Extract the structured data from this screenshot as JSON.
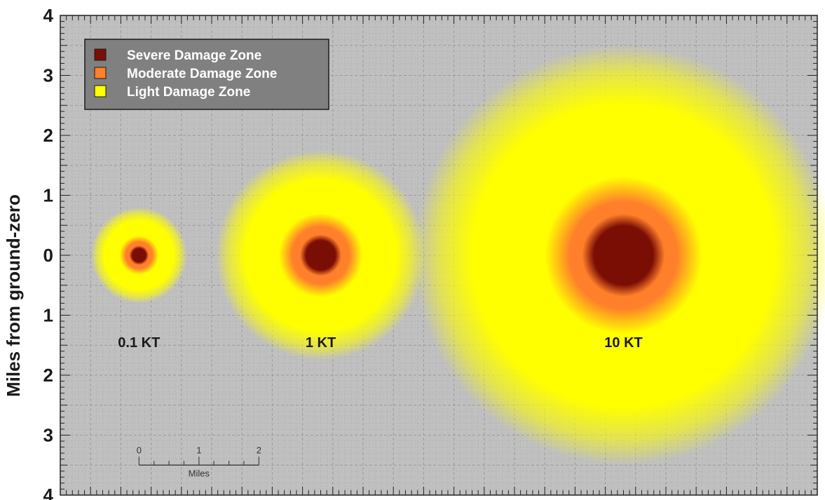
{
  "chart_data": {
    "type": "scatter",
    "title": "",
    "xlabel": "",
    "ylabel": "Miles from ground-zero",
    "xlim": [
      0,
      12.5
    ],
    "ylim": [
      -4,
      4
    ],
    "yticks": [
      {
        "value": 4,
        "label": "4"
      },
      {
        "value": 3,
        "label": "3"
      },
      {
        "value": 2,
        "label": "2"
      },
      {
        "value": 1,
        "label": "1"
      },
      {
        "value": 0,
        "label": "0"
      },
      {
        "value": -1,
        "label": "1"
      },
      {
        "value": -2,
        "label": "2"
      },
      {
        "value": -3,
        "label": "3"
      },
      {
        "value": -4,
        "label": "4"
      }
    ],
    "grid": true,
    "legend": {
      "placement": "top-left",
      "entries": [
        {
          "name": "Severe Damage Zone",
          "color": "#7a0e04"
        },
        {
          "name": "Moderate Damage Zone",
          "color": "#ff7f2a"
        },
        {
          "name": "Light Damage Zone",
          "color": "#ffff00"
        }
      ]
    },
    "zone_colors": {
      "severe": "#7a0e04",
      "moderate": "#ff7f2a",
      "light": "#ffff00",
      "background": "#c0c0c0"
    },
    "series": [
      {
        "label": "0.1 KT",
        "center_x": 1.3,
        "severe_radius": 0.14,
        "moderate_radius": 0.26,
        "light_radius": 0.8,
        "label_y": -1.45
      },
      {
        "label": "1 KT",
        "center_x": 4.3,
        "severe_radius": 0.3,
        "moderate_radius": 0.56,
        "light_radius": 1.75,
        "label_y": -1.45
      },
      {
        "label": "10 KT",
        "center_x": 9.3,
        "severe_radius": 0.6,
        "moderate_radius": 1.05,
        "light_radius": 3.5,
        "label_y": -1.45
      }
    ],
    "scale_bar": {
      "x_start": 1.3,
      "y": -3.5,
      "ticks": [
        {
          "value": 0,
          "label": "0"
        },
        {
          "value": 1,
          "label": "1"
        },
        {
          "value": 2,
          "label": "2"
        }
      ],
      "unit": "Miles"
    }
  }
}
